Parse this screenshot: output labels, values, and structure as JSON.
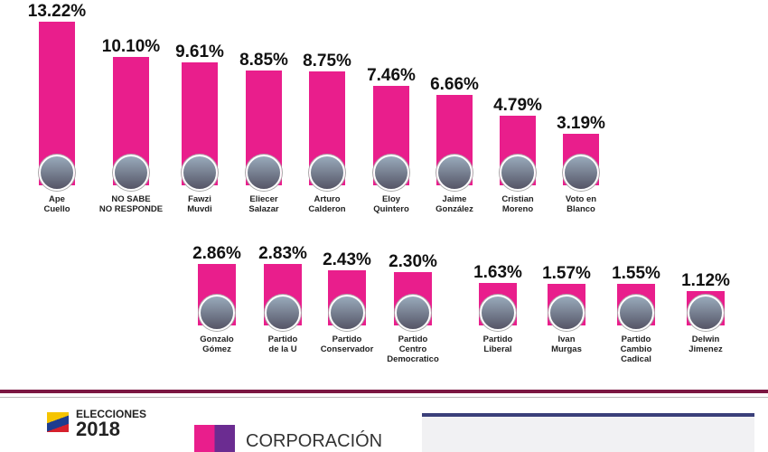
{
  "chart_data": [
    {
      "type": "bar",
      "categories": [
        "Ape\nCuello",
        "NO SABE\nNO RESPONDE",
        "Fawzi\nMuvdi",
        "Eliecer\nSalazar",
        "Arturo\nCalderon",
        "Eloy\nQuintero",
        "Jaime\nGonzález",
        "Cristian\nMoreno",
        "Voto en\nBlanco"
      ],
      "values": [
        13.22,
        10.1,
        9.61,
        8.85,
        8.75,
        7.46,
        6.66,
        4.79,
        3.19
      ],
      "value_labels": [
        "13.22%",
        "10.10%",
        "9.61%",
        "8.85%",
        "8.75%",
        "7.46%",
        "6.66%",
        "4.79%",
        "3.19%"
      ],
      "color": "#e91e8c"
    },
    {
      "type": "bar",
      "categories": [
        "Gonzalo\nGómez",
        "Partido\nde la U",
        "Partido\nConservador",
        "Partido\nCentro\nDemocratico",
        "Partido\nLiberal",
        "Ivan\nMurgas",
        "Partido\nCambio\nCadical",
        "Delwin\nJimenez"
      ],
      "values": [
        2.86,
        2.83,
        2.43,
        2.3,
        1.63,
        1.57,
        1.55,
        1.12
      ],
      "value_labels": [
        "2.86%",
        "2.83%",
        "2.43%",
        "2.30%",
        "1.63%",
        "1.57%",
        "1.55%",
        "1.12%"
      ],
      "color": "#e91e8c"
    }
  ],
  "footer": {
    "election": "ELECCIONES",
    "year": "2018",
    "company": "CORPORACIÓN"
  }
}
